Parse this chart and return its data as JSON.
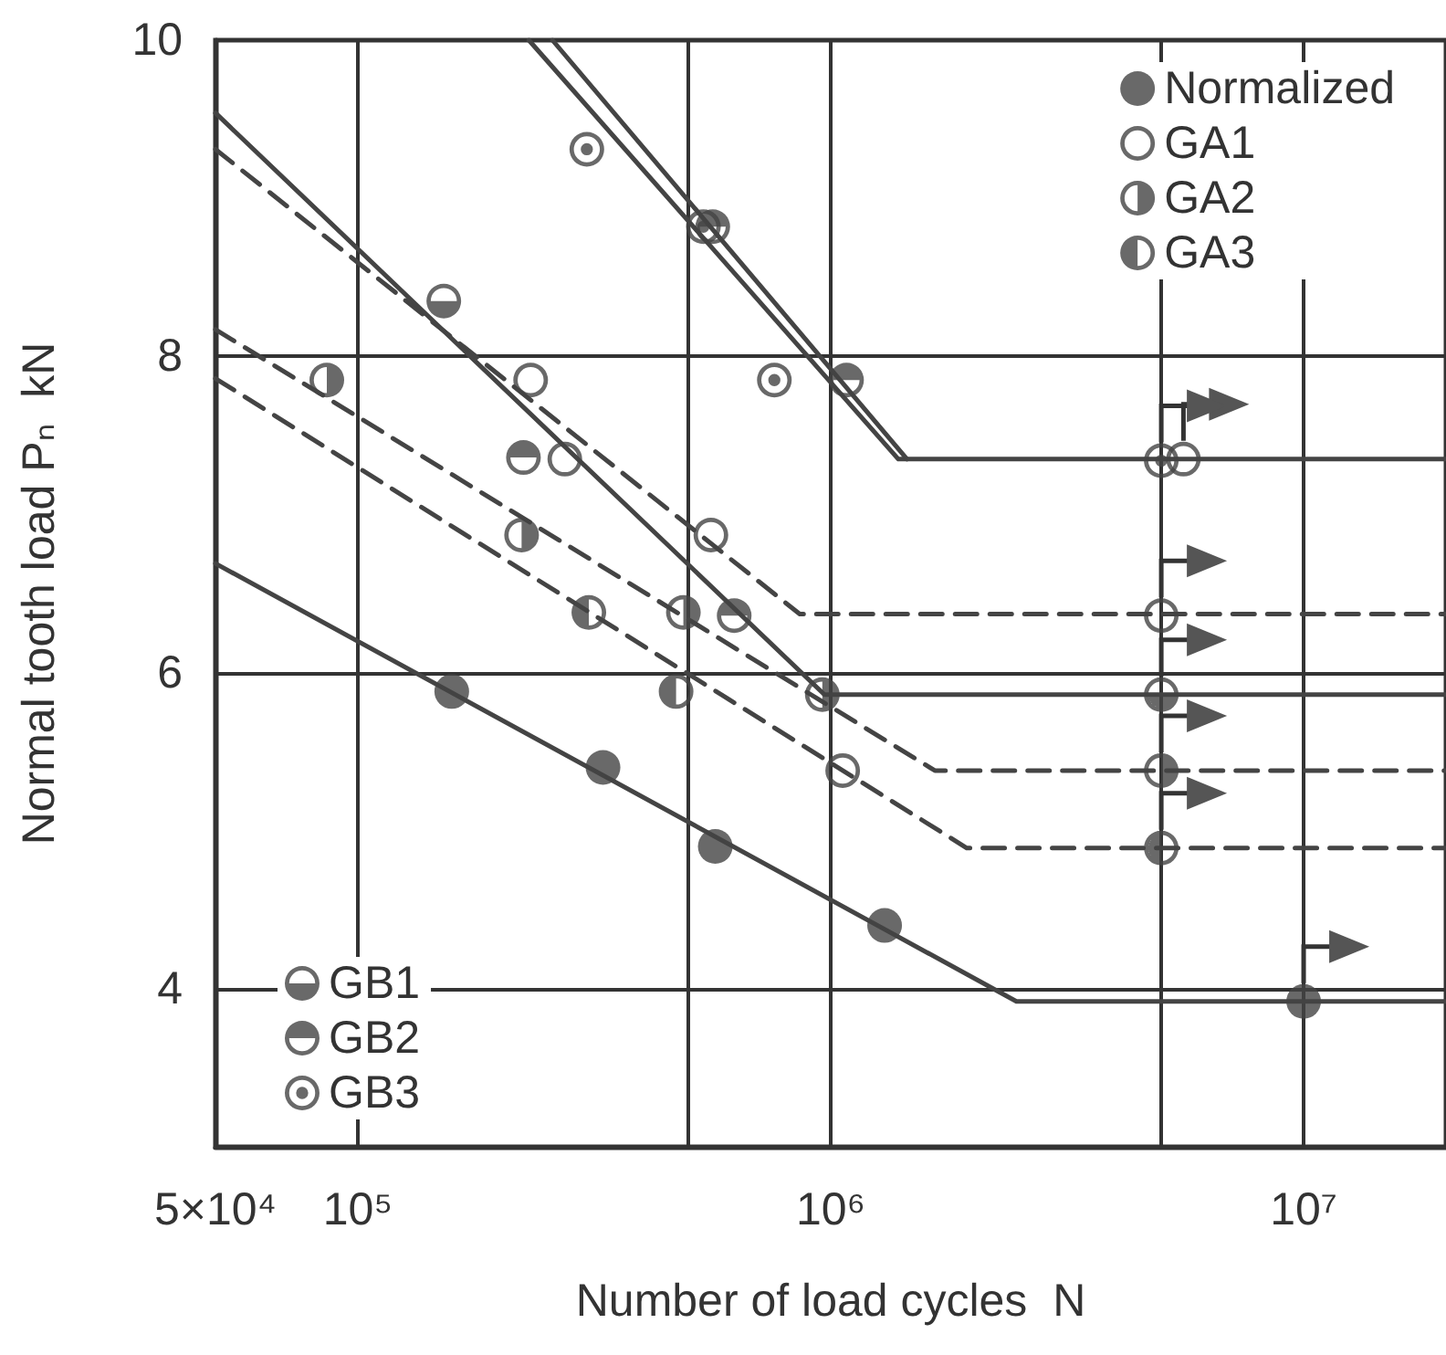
{
  "chart_data": {
    "type": "scatter",
    "xlabel": "Number of load cycles  N",
    "ylabel": "Normal tooth load Pₙ  kN",
    "log": "x",
    "xlim": [
      50000,
      20000000
    ],
    "ylim": [
      3,
      10
    ],
    "xticks": [
      {
        "value": 50000,
        "label": "5×10⁴"
      },
      {
        "value": 100000,
        "label": "10⁵"
      },
      {
        "value": 500000,
        "label": null
      },
      {
        "value": 1000000,
        "label": "10⁶"
      },
      {
        "value": 5000000,
        "label": null
      },
      {
        "value": 10000000,
        "label": "10⁷"
      }
    ],
    "yticks": [
      4,
      6,
      8,
      10
    ],
    "grid": true,
    "legend": [
      "top right",
      "bottom left"
    ],
    "marker": "circle",
    "series": [
      {
        "type": "line",
        "color": "#444444",
        "line_style": "solid",
        "marker": "none",
        "x": [
          50000,
          2470000,
          20000000
        ],
        "values": [
          6.69,
          3.92,
          3.92
        ]
      },
      {
        "type": "line",
        "color": "#444444",
        "line_style": "dashed",
        "marker": "none",
        "x": [
          50000,
          860000,
          20000000
        ],
        "values": [
          9.31,
          6.37,
          6.37
        ]
      },
      {
        "type": "line",
        "color": "#444444",
        "line_style": "solid",
        "marker": "none",
        "x": [
          50000,
          970000,
          20000000
        ],
        "values": [
          9.54,
          5.86,
          5.86
        ]
      },
      {
        "type": "line",
        "color": "#444444",
        "line_style": "dashed",
        "marker": "none",
        "x": [
          50000,
          1660000,
          20000000
        ],
        "values": [
          8.17,
          5.38,
          5.38
        ]
      },
      {
        "type": "line",
        "color": "#444444",
        "line_style": "dashed",
        "marker": "none",
        "x": [
          50000,
          1940000,
          20000000
        ],
        "values": [
          7.86,
          4.89,
          4.89
        ]
      },
      {
        "type": "line",
        "color": "#444444",
        "line_style": "solid",
        "marker": "none",
        "x": [
          230000,
          1390000,
          20000000
        ],
        "values": [
          10,
          7.35,
          7.35
        ]
      },
      {
        "type": "line",
        "color": "#444444",
        "line_style": "solid",
        "marker": "none",
        "x": [
          258000,
          1450000
        ],
        "values": [
          10,
          7.35
        ]
      },
      {
        "name": "Normalized",
        "color": "#444444",
        "x": [
          158000,
          330000,
          570000,
          1300000,
          10000000
        ],
        "values": [
          5.88,
          5.4,
          4.9,
          4.4,
          3.92
        ]
      },
      {
        "name": "GA1",
        "color": "#444444",
        "x": [
          232000,
          274000,
          558000,
          1060000,
          5000000,
          5570000
        ],
        "values": [
          7.85,
          7.35,
          6.87,
          5.38,
          6.36,
          7.35
        ]
      },
      {
        "name": "GA2",
        "color": "#444444",
        "x": [
          86000,
          222000,
          488000,
          960000,
          5000000
        ],
        "values": [
          7.85,
          6.87,
          6.38,
          5.86,
          5.38
        ]
      },
      {
        "name": "GA3",
        "color": "#444444",
        "x": [
          308000,
          471000,
          5000000
        ],
        "values": [
          6.38,
          5.88,
          4.89
        ]
      },
      {
        "name": "GB1",
        "color": "#444444",
        "x": [
          152000,
          5000000
        ],
        "values": [
          8.35,
          5.86
        ]
      },
      {
        "name": "GB2",
        "color": "#444444",
        "x": [
          224000,
          563000,
          625000,
          1080000
        ],
        "values": [
          7.36,
          8.82,
          6.36,
          7.85
        ]
      },
      {
        "name": "GB3",
        "color": "#444444",
        "x": [
          305000,
          538000,
          760000,
          5000000
        ],
        "values": [
          9.31,
          8.82,
          7.85,
          7.34
        ]
      }
    ]
  }
}
